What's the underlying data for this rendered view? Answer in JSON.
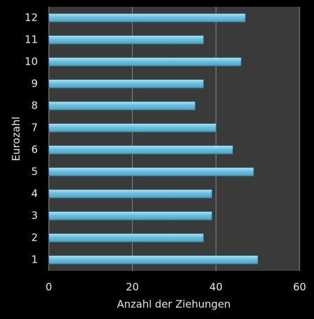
{
  "chart_data": {
    "type": "barh",
    "xlabel": "Anzahl der Ziehungen",
    "ylabel": "Eurozahl",
    "categories": [
      "1",
      "2",
      "3",
      "4",
      "5",
      "6",
      "7",
      "8",
      "9",
      "10",
      "11",
      "12"
    ],
    "values": [
      50,
      37,
      39,
      39,
      49,
      44,
      40,
      35,
      37,
      46,
      37,
      47
    ],
    "color": "#56b9dc",
    "xlim": [
      0,
      60
    ],
    "xticks": [
      0,
      20,
      40,
      60
    ],
    "grid": true
  }
}
